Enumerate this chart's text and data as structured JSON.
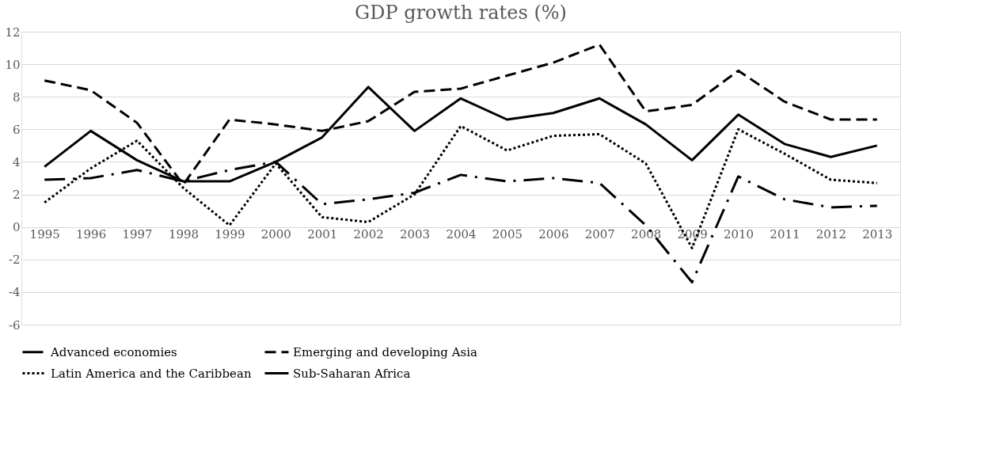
{
  "chart_data": {
    "type": "line",
    "title": "GDP growth rates (%)",
    "categories": [
      "1995",
      "1996",
      "1997",
      "1998",
      "1999",
      "2000",
      "2001",
      "2002",
      "2003",
      "2004",
      "2005",
      "2006",
      "2007",
      "2008",
      "2009",
      "2010",
      "2011",
      "2012",
      "2013"
    ],
    "series": [
      {
        "name": "Advanced economies",
        "color": "#000000",
        "line_style": "dashdot",
        "values": [
          2.9,
          3.0,
          3.5,
          2.8,
          3.5,
          4.0,
          1.4,
          1.7,
          2.1,
          3.2,
          2.8,
          3.0,
          2.7,
          0.1,
          -3.4,
          3.1,
          1.7,
          1.2,
          1.3
        ]
      },
      {
        "name": "Emerging and developing Asia",
        "color": "#000000",
        "line_style": "dashed",
        "values": [
          9.0,
          8.4,
          6.4,
          2.6,
          6.6,
          6.3,
          5.9,
          6.5,
          8.3,
          8.5,
          9.3,
          10.1,
          11.2,
          7.1,
          7.5,
          9.6,
          7.7,
          6.6,
          6.6
        ]
      },
      {
        "name": "Latin America and the Caribbean",
        "color": "#000000",
        "line_style": "dotted",
        "values": [
          1.5,
          3.6,
          5.3,
          2.4,
          0.1,
          3.9,
          0.6,
          0.3,
          2.0,
          6.2,
          4.7,
          5.6,
          5.7,
          3.9,
          -1.3,
          6.0,
          4.5,
          2.9,
          2.7
        ]
      },
      {
        "name": "Sub-Saharan Africa",
        "color": "#000000",
        "line_style": "solid",
        "values": [
          3.7,
          5.9,
          4.1,
          2.8,
          2.8,
          4.0,
          5.5,
          8.6,
          5.9,
          7.9,
          6.6,
          7.0,
          7.9,
          6.3,
          4.1,
          6.9,
          5.1,
          4.3,
          5.0
        ]
      }
    ],
    "ylim": [
      -6,
      12
    ],
    "yticks": [
      -6,
      -4,
      -2,
      0,
      2,
      4,
      6,
      8,
      10,
      12
    ],
    "grid": "y",
    "legend": "bottom"
  }
}
